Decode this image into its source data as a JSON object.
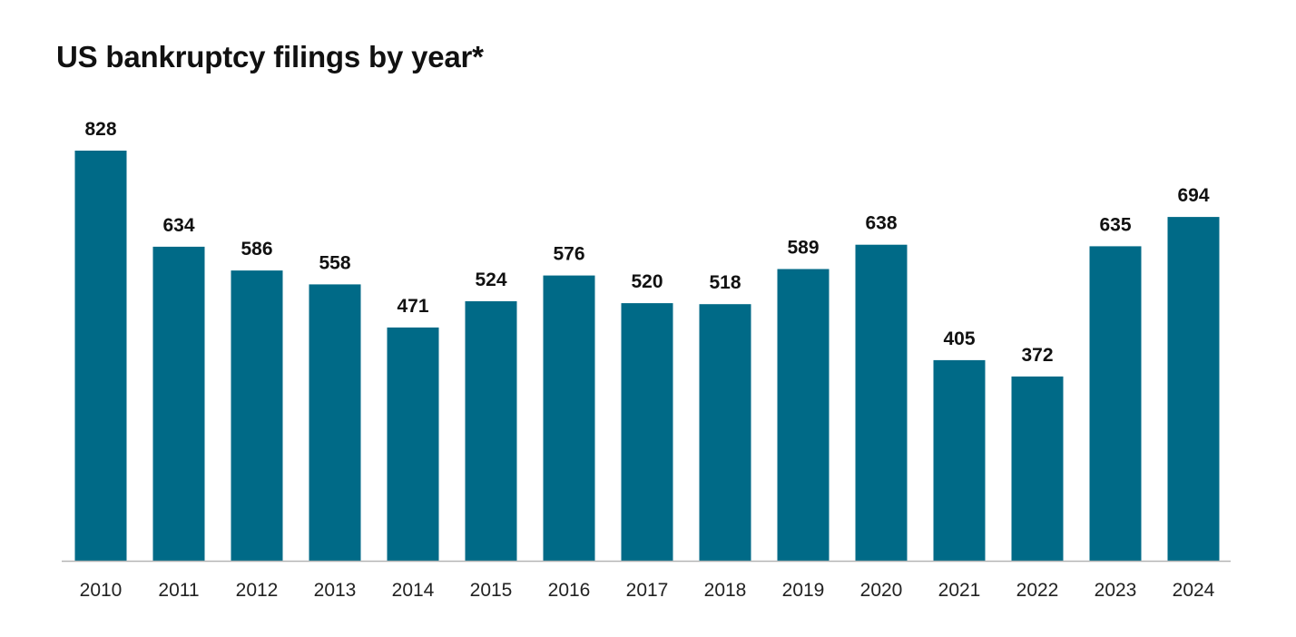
{
  "chart_data": {
    "type": "bar",
    "title": "US bankruptcy filings by year*",
    "xlabel": "",
    "ylabel": "",
    "categories": [
      "2010",
      "2011",
      "2012",
      "2013",
      "2014",
      "2015",
      "2016",
      "2017",
      "2018",
      "2019",
      "2020",
      "2021",
      "2022",
      "2023",
      "2024"
    ],
    "values": [
      828,
      634,
      586,
      558,
      471,
      524,
      576,
      520,
      518,
      589,
      638,
      405,
      372,
      635,
      694
    ],
    "ylim": [
      0,
      828
    ],
    "grid": false,
    "data_labels": true,
    "legend": "none",
    "bar_color": "#006a87",
    "axis_color": "#b5b5b5"
  }
}
